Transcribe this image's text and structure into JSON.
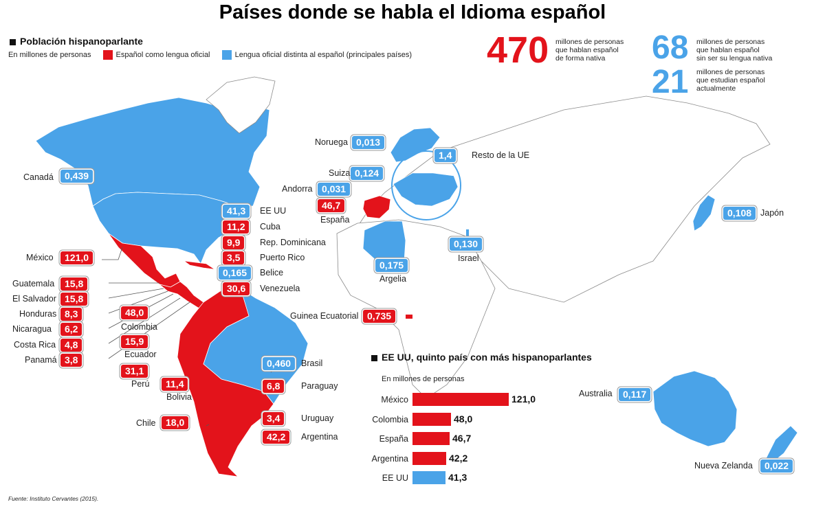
{
  "title": "Países donde se habla el Idioma español",
  "section_title": "Población hispanoparlante",
  "legend": {
    "unit": "En millones de personas",
    "red_label": "Español como lengua oficial",
    "blue_label": "Lengua oficial distinta al español (principales países)"
  },
  "colors": {
    "red": "#e3131b",
    "blue": "#4aa3e8",
    "land": "#ffffff",
    "border": "#8a8a8a"
  },
  "stats": [
    {
      "number": "470",
      "text": [
        "millones de personas",
        "que hablan español",
        "de forma nativa"
      ],
      "color": "red"
    },
    {
      "number": "68",
      "text": [
        "millones de personas",
        "que hablan español",
        "sin ser su lengua nativa"
      ],
      "color": "blue"
    },
    {
      "number": "21",
      "text": [
        "millones de personas",
        "que estudian español",
        "actualmente"
      ],
      "color": "blue"
    }
  ],
  "countries": [
    {
      "name": "Canadá",
      "value": "0,439",
      "type": "blue"
    },
    {
      "name": "EE UU",
      "value": "41,3",
      "type": "blue"
    },
    {
      "name": "Cuba",
      "value": "11,2",
      "type": "red"
    },
    {
      "name": "Rep. Dominicana",
      "value": "9,9",
      "type": "red"
    },
    {
      "name": "Puerto Rico",
      "value": "3,5",
      "type": "red"
    },
    {
      "name": "Belice",
      "value": "0,165",
      "type": "blue"
    },
    {
      "name": "Venezuela",
      "value": "30,6",
      "type": "red"
    },
    {
      "name": "México",
      "value": "121,0",
      "type": "red"
    },
    {
      "name": "Guatemala",
      "value": "15,8",
      "type": "red"
    },
    {
      "name": "El Salvador",
      "value": "15,8",
      "type": "red"
    },
    {
      "name": "Honduras",
      "value": "8,3",
      "type": "red"
    },
    {
      "name": "Nicaragua",
      "value": "6,2",
      "type": "red"
    },
    {
      "name": "Costa Rica",
      "value": "4,8",
      "type": "red"
    },
    {
      "name": "Panamá",
      "value": "3,8",
      "type": "red"
    },
    {
      "name": "Colombia",
      "value": "48,0",
      "type": "red"
    },
    {
      "name": "Ecuador",
      "value": "15,9",
      "type": "red"
    },
    {
      "name": "Perú",
      "value": "31,1",
      "type": "red"
    },
    {
      "name": "Bolivia",
      "value": "11,4",
      "type": "red"
    },
    {
      "name": "Chile",
      "value": "18,0",
      "type": "red"
    },
    {
      "name": "Brasil",
      "value": "0,460",
      "type": "blue"
    },
    {
      "name": "Paraguay",
      "value": "6,8",
      "type": "red"
    },
    {
      "name": "Uruguay",
      "value": "3,4",
      "type": "red"
    },
    {
      "name": "Argentina",
      "value": "42,2",
      "type": "red"
    },
    {
      "name": "Noruega",
      "value": "0,013",
      "type": "blue"
    },
    {
      "name": "Resto de la UE",
      "value": "1,4",
      "type": "blue"
    },
    {
      "name": "Suiza",
      "value": "0,124",
      "type": "blue"
    },
    {
      "name": "Andorra",
      "value": "0,031",
      "type": "blue"
    },
    {
      "name": "España",
      "value": "46,7",
      "type": "red"
    },
    {
      "name": "Argelia",
      "value": "0,175",
      "type": "blue"
    },
    {
      "name": "Israel",
      "value": "0,130",
      "type": "blue"
    },
    {
      "name": "Guinea Ecuatorial",
      "value": "0,735",
      "type": "red"
    },
    {
      "name": "Japón",
      "value": "0,108",
      "type": "blue"
    },
    {
      "name": "Australia",
      "value": "0,117",
      "type": "blue"
    },
    {
      "name": "Nueva Zelanda",
      "value": "0,022",
      "type": "blue"
    }
  ],
  "chart_data": {
    "type": "bar",
    "title": "EE UU, quinto país con más hispanoparlantes",
    "subtitle": "En millones de personas",
    "categories": [
      "México",
      "Colombia",
      "España",
      "Argentina",
      "EE UU"
    ],
    "values": [
      121.0,
      48.0,
      46.7,
      42.2,
      41.3
    ],
    "value_labels": [
      "121,0",
      "48,0",
      "46,7",
      "42,2",
      "41,3"
    ],
    "bar_colors": [
      "red",
      "red",
      "red",
      "red",
      "blue"
    ],
    "orientation": "horizontal"
  },
  "source": "Fuente: Instituto Cervantes (2015)."
}
